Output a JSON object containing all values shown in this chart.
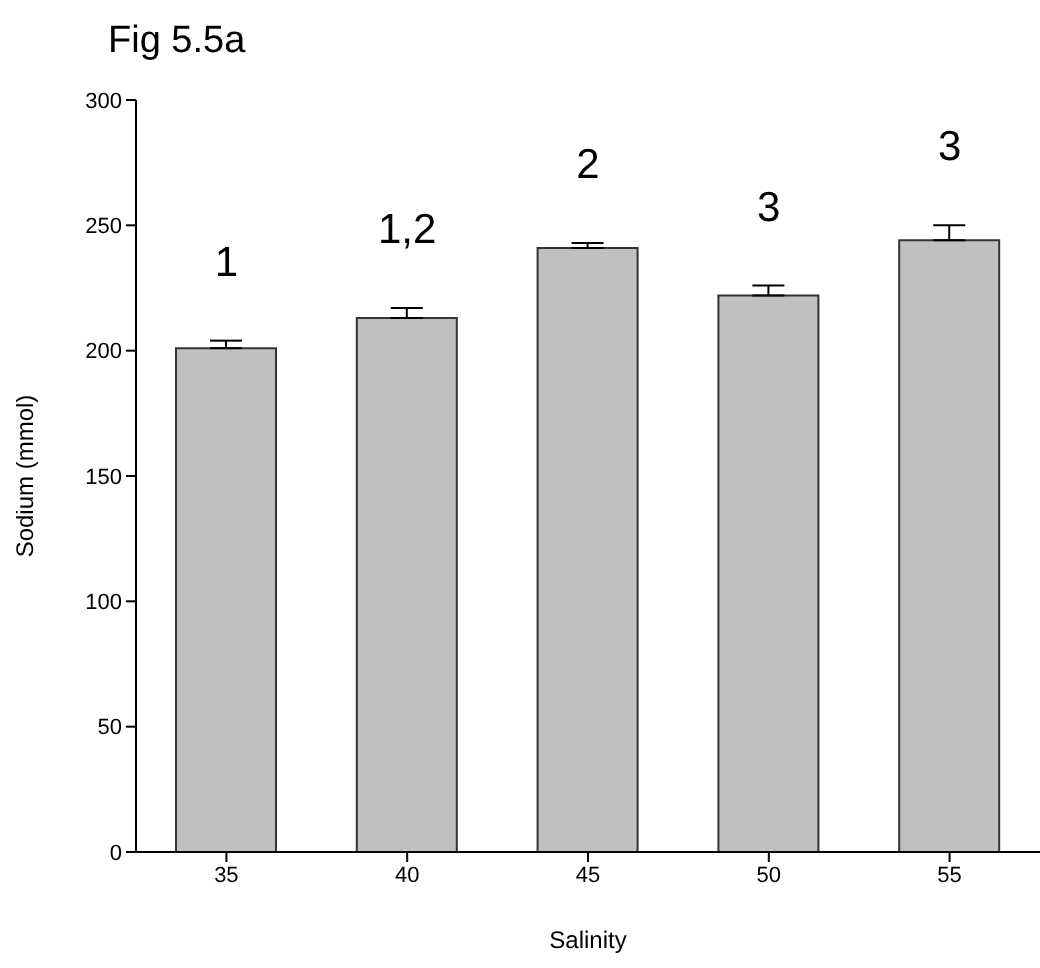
{
  "chart_data": {
    "type": "bar",
    "title": "Fig 5.5a",
    "xlabel": "Salinity",
    "ylabel": "Sodium (mmol)",
    "categories": [
      "35",
      "40",
      "45",
      "50",
      "55"
    ],
    "values": [
      201,
      213,
      241,
      222,
      244
    ],
    "errors": [
      [
        201,
        204
      ],
      [
        213,
        217
      ],
      [
        241,
        243
      ],
      [
        222,
        226
      ],
      [
        244,
        250
      ]
    ],
    "color": "#c0c0c0",
    "ylim": [
      0,
      300
    ],
    "yticks": [
      0,
      50,
      100,
      150,
      200,
      250,
      300
    ],
    "annotations": [
      "1",
      "1,2",
      "2",
      "3",
      "3"
    ]
  }
}
